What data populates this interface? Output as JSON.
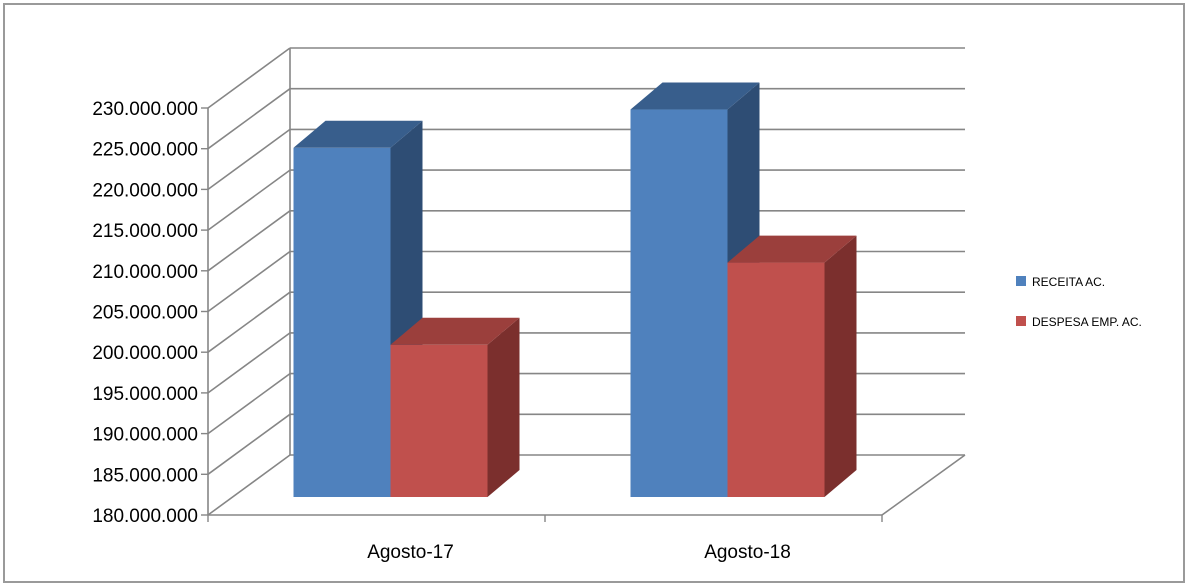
{
  "chart_data": {
    "type": "bar",
    "variant": "3d-clustered-column",
    "title": "",
    "xlabel": "",
    "ylabel": "",
    "categories": [
      "Agosto-17",
      "Agosto-18"
    ],
    "series": [
      {
        "name": "RECEITA  AC.",
        "values": [
          222900000,
          227600000
        ],
        "color": "#4f81bd",
        "side_color": "#2e4d74",
        "top_color": "#385e8c"
      },
      {
        "name": "DESPESA EMP. AC.",
        "values": [
          198700000,
          208800000
        ],
        "color": "#c0504d",
        "side_color": "#7b2f2d",
        "top_color": "#9b3f3c"
      }
    ],
    "ylim": [
      180000000,
      230000000
    ],
    "yticks": [
      180000000,
      185000000,
      190000000,
      195000000,
      200000000,
      205000000,
      210000000,
      215000000,
      220000000,
      225000000,
      230000000
    ],
    "ytick_labels": [
      "180.000.000",
      "185.000.000",
      "190.000.000",
      "195.000.000",
      "200.000.000",
      "205.000.000",
      "210.000.000",
      "215.000.000",
      "220.000.000",
      "225.000.000",
      "230.000.000"
    ],
    "grid": true,
    "legend_position": "right",
    "grid_color": "#868686"
  }
}
